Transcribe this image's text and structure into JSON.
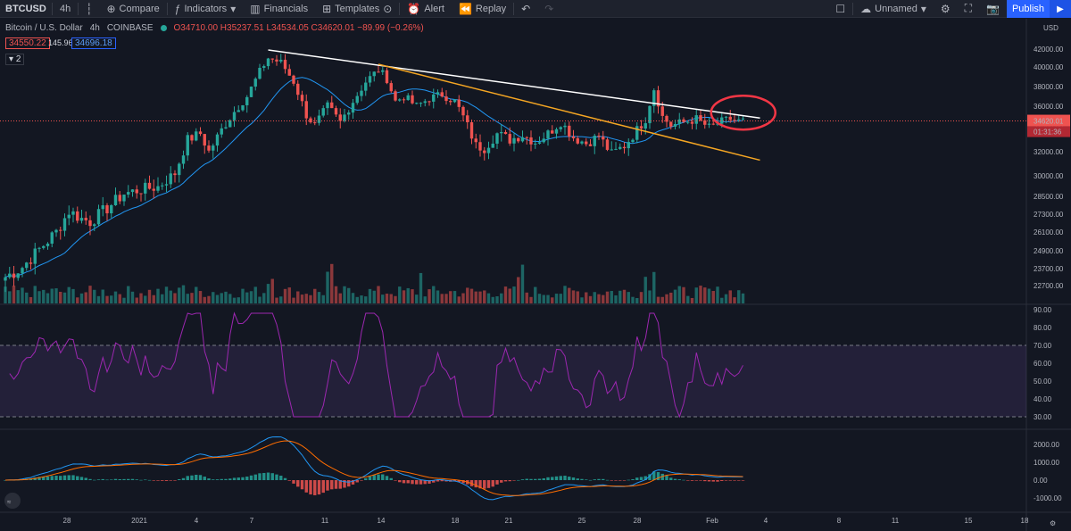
{
  "toolbar": {
    "symbol": "BTCUSD",
    "interval": "4h",
    "compare": "Compare",
    "indicators": "Indicators",
    "financials": "Financials",
    "templates": "Templates",
    "alert": "Alert",
    "replay": "Replay",
    "layout_name": "Unnamed",
    "publish": "Publish"
  },
  "legend": {
    "title": "Bitcoin / U.S. Dollar",
    "interval": "4h",
    "exchange": "COINBASE",
    "values": "O34710.00 H35237.51 L34534.05 C34620.01 −89.99 (−0.26%)",
    "bid": "34550.22",
    "spread": "145.96",
    "ask": "34696.18",
    "indicator_count": "2"
  },
  "chart_data": {
    "type": "candlestick",
    "currency": "USD",
    "price_axis": [
      "42000.00",
      "40000.00",
      "38000.00",
      "36000.00",
      "34000.00",
      "32000.00",
      "30000.00",
      "28500.00",
      "27300.00",
      "26100.00",
      "24900.00",
      "23700.00",
      "22700.00"
    ],
    "current_price": "34620.01",
    "countdown": "01:31:36",
    "rsi_axis": [
      "90.00",
      "80.00",
      "70.00",
      "60.00",
      "50.00",
      "40.00",
      "30.00"
    ],
    "rsi_bands": [
      70,
      30
    ],
    "macd_axis": [
      "2000.00",
      "1000.00",
      "0.00",
      "-1000.00"
    ],
    "time_axis": [
      "28",
      "2021",
      "4",
      "7",
      "11",
      "14",
      "18",
      "21",
      "25",
      "28",
      "Feb",
      "4",
      "8",
      "11",
      "15",
      "18"
    ],
    "close_path": [
      [
        0,
        23200
      ],
      [
        4,
        23800
      ],
      [
        8,
        25000
      ],
      [
        12,
        26100
      ],
      [
        15,
        27500
      ],
      [
        18,
        27000
      ],
      [
        20,
        26800
      ],
      [
        24,
        27700
      ],
      [
        28,
        28700
      ],
      [
        32,
        29000
      ],
      [
        36,
        29200
      ],
      [
        40,
        30200
      ],
      [
        43,
        33000
      ],
      [
        46,
        33500
      ],
      [
        48,
        32000
      ],
      [
        51,
        33800
      ],
      [
        54,
        35500
      ],
      [
        57,
        37000
      ],
      [
        60,
        39500
      ],
      [
        62,
        41000
      ],
      [
        65,
        40500
      ],
      [
        68,
        38500
      ],
      [
        71,
        35200
      ],
      [
        73,
        34200
      ],
      [
        76,
        36000
      ],
      [
        79,
        34500
      ],
      [
        82,
        36500
      ],
      [
        85,
        38500
      ],
      [
        88,
        39700
      ],
      [
        90,
        38800
      ],
      [
        92,
        36500
      ],
      [
        94,
        37000
      ],
      [
        97,
        36000
      ],
      [
        100,
        36800
      ],
      [
        103,
        37200
      ],
      [
        106,
        36500
      ],
      [
        108,
        35000
      ],
      [
        111,
        32500
      ],
      [
        113,
        32300
      ],
      [
        116,
        33500
      ],
      [
        119,
        33000
      ],
      [
        122,
        33400
      ],
      [
        125,
        32800
      ],
      [
        128,
        33500
      ],
      [
        131,
        34500
      ],
      [
        134,
        33200
      ],
      [
        137,
        32700
      ],
      [
        140,
        33300
      ],
      [
        143,
        31800
      ],
      [
        146,
        32500
      ],
      [
        149,
        33800
      ],
      [
        151,
        34800
      ],
      [
        153,
        37800
      ],
      [
        155,
        35000
      ],
      [
        157,
        34200
      ],
      [
        160,
        34500
      ],
      [
        163,
        34800
      ],
      [
        166,
        34000
      ],
      [
        168,
        34400
      ],
      [
        171,
        34800
      ],
      [
        173,
        34600
      ]
    ],
    "trendlines": [
      {
        "color": "#ffffff",
        "from": [
          62,
          41900
        ],
        "to": [
          178,
          34900
        ]
      },
      {
        "color": "#f5a623",
        "from": [
          88,
          40300
        ],
        "to": [
          178,
          31300
        ]
      }
    ],
    "highlight": {
      "shape": "ellipse",
      "color": "#f23645"
    }
  },
  "colors": {
    "up": "#26a69a",
    "down": "#ef5350",
    "ma": "#2196f3",
    "rsi": "#9c27b0",
    "macd": "#2196f3",
    "signal": "#ff6d00",
    "accent": "#2962ff"
  }
}
